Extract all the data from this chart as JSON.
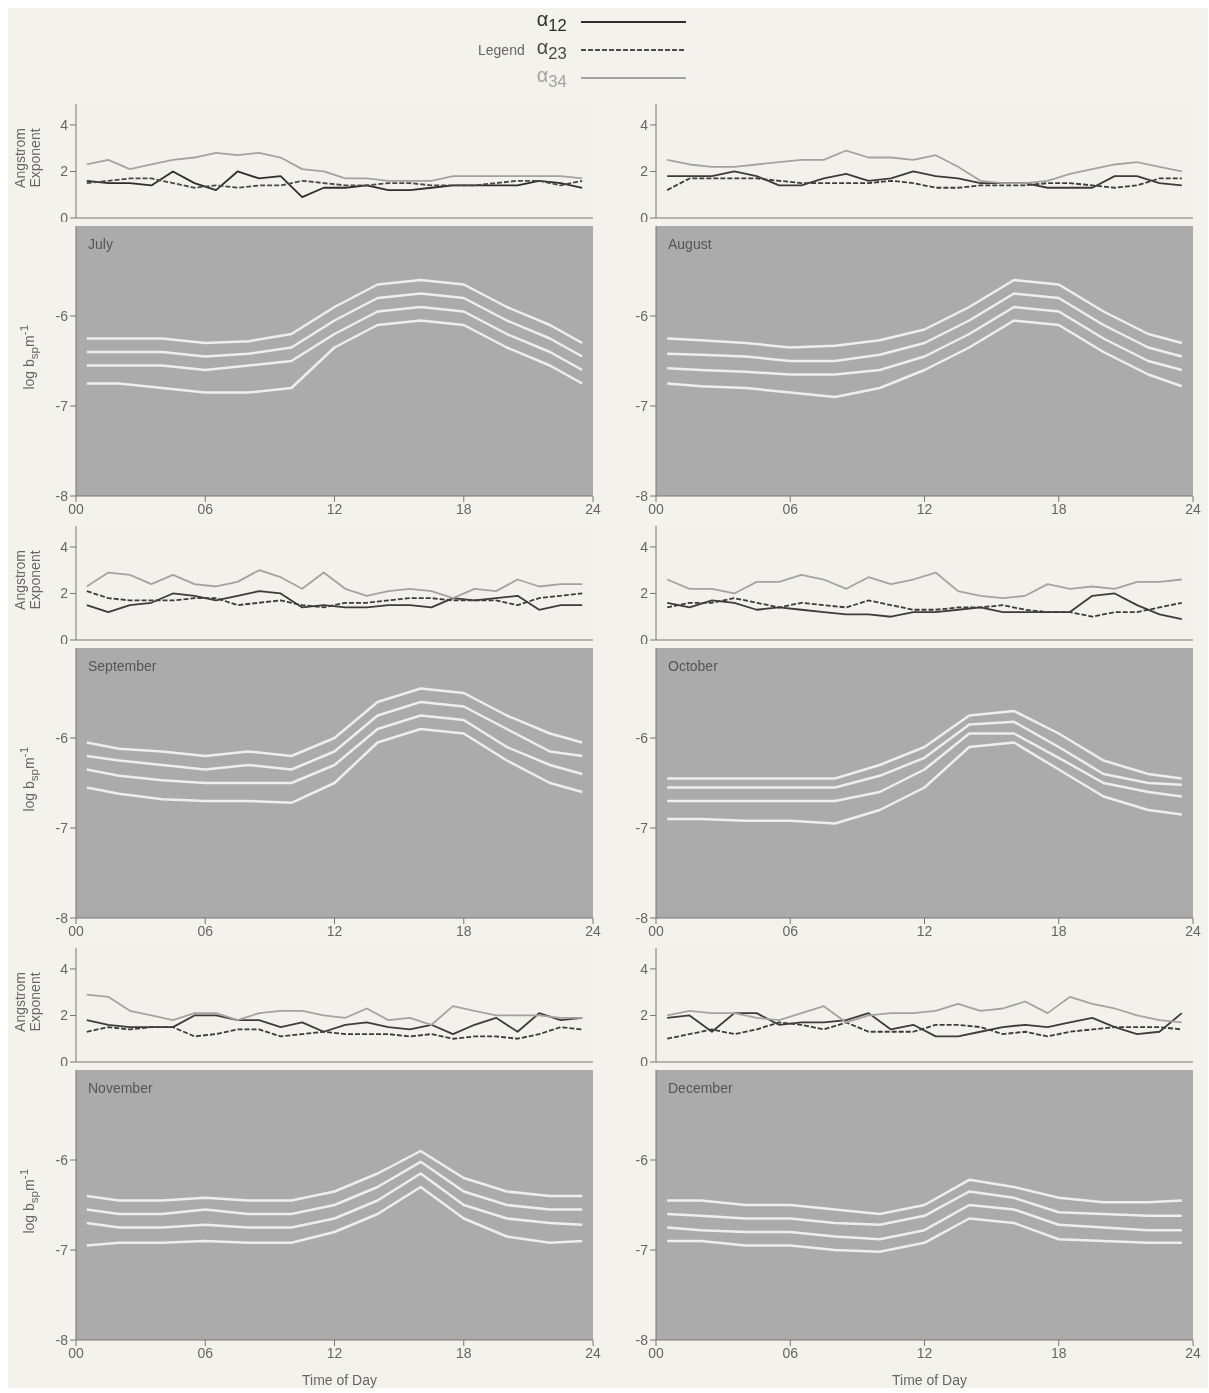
{
  "chart_data": [
    {
      "type": "line",
      "ylabel": "Angstrom Exponent",
      "legend": "top",
      "legend_title": "Legend",
      "tick_labels": "y",
      "xlim": [
        0,
        24
      ],
      "ylim": [
        0,
        4.9
      ],
      "xticks": [
        {
          "value": 0,
          "label": null
        },
        {
          "value": 6,
          "label": null
        },
        {
          "value": 12,
          "label": null
        },
        {
          "value": 18,
          "label": null
        },
        {
          "value": 24,
          "label": null
        }
      ],
      "yticks": [
        0,
        2,
        4
      ],
      "x": [
        0.5,
        1.5,
        2.5,
        3.5,
        4.5,
        5.5,
        6.5,
        7.5,
        8.5,
        9.5,
        10.5,
        11.5,
        12.5,
        13.5,
        14.5,
        15.5,
        16.5,
        17.5,
        18.5,
        19.5,
        20.5,
        21.5,
        22.5,
        23.5
      ],
      "series": [
        {
          "name": "α$_{12}$",
          "color": "#2e2e2e",
          "line_style": "solid",
          "values": [
            1.6,
            1.5,
            1.5,
            1.4,
            2.0,
            1.5,
            1.2,
            2.0,
            1.7,
            1.8,
            0.9,
            1.3,
            1.3,
            1.4,
            1.2,
            1.2,
            1.3,
            1.4,
            1.4,
            1.4,
            1.4,
            1.6,
            1.5,
            1.3
          ]
        },
        {
          "name": "α$_{23}$",
          "color": "#4a4a4a",
          "line_style": "dashed",
          "values": [
            1.5,
            1.6,
            1.7,
            1.7,
            1.5,
            1.3,
            1.4,
            1.3,
            1.4,
            1.4,
            1.6,
            1.5,
            1.4,
            1.4,
            1.5,
            1.5,
            1.4,
            1.4,
            1.4,
            1.5,
            1.6,
            1.6,
            1.4,
            1.6
          ]
        },
        {
          "name": "α$_{34}$",
          "color": "#a3a3a3",
          "line_style": "solid",
          "values": [
            2.3,
            2.5,
            2.1,
            2.3,
            2.5,
            2.6,
            2.8,
            2.7,
            2.8,
            2.6,
            2.1,
            2.0,
            1.7,
            1.7,
            1.6,
            1.6,
            1.6,
            1.8,
            1.8,
            1.8,
            1.8,
            1.8,
            1.8,
            1.7
          ]
        }
      ]
    },
    {
      "type": "line",
      "tick_labels": "y",
      "xlim": [
        0,
        24
      ],
      "ylim": [
        0,
        4.9
      ],
      "xticks": [
        {
          "value": 0,
          "label": null
        },
        {
          "value": 6,
          "label": null
        },
        {
          "value": 12,
          "label": null
        },
        {
          "value": 18,
          "label": null
        },
        {
          "value": 24,
          "label": null
        }
      ],
      "yticks": [
        0,
        2,
        4
      ],
      "x": [
        0.5,
        1.5,
        2.5,
        3.5,
        4.5,
        5.5,
        6.5,
        7.5,
        8.5,
        9.5,
        10.5,
        11.5,
        12.5,
        13.5,
        14.5,
        15.5,
        16.5,
        17.5,
        18.5,
        19.5,
        20.5,
        21.5,
        22.5,
        23.5
      ],
      "series": [
        {
          "color": "#3c3c3c",
          "line_style": "solid",
          "values": [
            1.8,
            1.8,
            1.8,
            2.0,
            1.8,
            1.4,
            1.4,
            1.7,
            1.9,
            1.6,
            1.7,
            2.0,
            1.8,
            1.7,
            1.5,
            1.5,
            1.5,
            1.3,
            1.3,
            1.3,
            1.8,
            1.8,
            1.5,
            1.4
          ]
        },
        {
          "color": "#3c3c3c",
          "line_style": "dashed",
          "values": [
            1.2,
            1.7,
            1.7,
            1.7,
            1.7,
            1.6,
            1.5,
            1.5,
            1.5,
            1.5,
            1.6,
            1.5,
            1.3,
            1.3,
            1.4,
            1.4,
            1.4,
            1.5,
            1.5,
            1.4,
            1.3,
            1.4,
            1.7,
            1.7
          ]
        },
        {
          "color": "#a3a3a3",
          "line_style": "solid",
          "values": [
            2.5,
            2.3,
            2.2,
            2.2,
            2.3,
            2.4,
            2.5,
            2.5,
            2.9,
            2.6,
            2.6,
            2.5,
            2.7,
            2.2,
            1.6,
            1.5,
            1.5,
            1.6,
            1.9,
            2.1,
            2.3,
            2.4,
            2.2,
            2.0
          ]
        }
      ]
    },
    {
      "type": "line",
      "ylabel": "log b$_{sp}$m$^{-1}$",
      "annotations": [
        "July"
      ],
      "xlim": [
        0,
        24
      ],
      "ylim": [
        -8,
        -5
      ],
      "xticks": [
        {
          "value": 0,
          "label": "00"
        },
        {
          "value": 6,
          "label": "06"
        },
        12,
        18,
        24
      ],
      "yticks": [
        -8,
        -7,
        -6
      ],
      "x": [
        0.5,
        2,
        4,
        6,
        8,
        10,
        12,
        14,
        16,
        18,
        20,
        22,
        23.5
      ],
      "series": [
        {
          "color": "#eeeeee",
          "values": [
            -6.25,
            -6.25,
            -6.25,
            -6.3,
            -6.28,
            -6.2,
            -5.9,
            -5.65,
            -5.6,
            -5.65,
            -5.9,
            -6.1,
            -6.3
          ]
        },
        {
          "color": "#eeeeee",
          "values": [
            -6.4,
            -6.4,
            -6.4,
            -6.45,
            -6.42,
            -6.35,
            -6.05,
            -5.8,
            -5.75,
            -5.8,
            -6.05,
            -6.25,
            -6.45
          ]
        },
        {
          "color": "#eeeeee",
          "values": [
            -6.55,
            -6.55,
            -6.55,
            -6.6,
            -6.55,
            -6.5,
            -6.2,
            -5.95,
            -5.9,
            -5.95,
            -6.2,
            -6.4,
            -6.6
          ]
        },
        {
          "color": "#eeeeee",
          "values": [
            -6.75,
            -6.75,
            -6.8,
            -6.85,
            -6.85,
            -6.8,
            -6.35,
            -6.1,
            -6.05,
            -6.1,
            -6.35,
            -6.55,
            -6.75
          ]
        }
      ]
    },
    {
      "type": "line",
      "annotations": [
        "August"
      ],
      "xlim": [
        0,
        24
      ],
      "ylim": [
        -8,
        -5
      ],
      "xticks": [
        {
          "value": 0,
          "label": "00"
        },
        {
          "value": 6,
          "label": "06"
        },
        12,
        18,
        24
      ],
      "yticks": [
        -8,
        -7,
        -6
      ],
      "x": [
        0.5,
        2,
        4,
        6,
        8,
        10,
        12,
        14,
        16,
        18,
        20,
        22,
        23.5
      ],
      "series": [
        {
          "color": "#eeeeee",
          "values": [
            -6.25,
            -6.27,
            -6.3,
            -6.35,
            -6.33,
            -6.27,
            -6.15,
            -5.9,
            -5.6,
            -5.65,
            -5.95,
            -6.2,
            -6.3
          ]
        },
        {
          "color": "#eeeeee",
          "values": [
            -6.42,
            -6.43,
            -6.45,
            -6.5,
            -6.5,
            -6.43,
            -6.3,
            -6.05,
            -5.75,
            -5.8,
            -6.1,
            -6.35,
            -6.45
          ]
        },
        {
          "color": "#eeeeee",
          "values": [
            -6.58,
            -6.6,
            -6.62,
            -6.65,
            -6.65,
            -6.6,
            -6.45,
            -6.2,
            -5.9,
            -5.95,
            -6.25,
            -6.5,
            -6.6
          ]
        },
        {
          "color": "#eeeeee",
          "values": [
            -6.75,
            -6.78,
            -6.8,
            -6.85,
            -6.9,
            -6.8,
            -6.6,
            -6.35,
            -6.05,
            -6.1,
            -6.4,
            -6.65,
            -6.78
          ]
        }
      ]
    },
    {
      "type": "line",
      "ylabel": "Angstrom Exponent",
      "tick_labels": "y",
      "xlim": [
        0,
        24
      ],
      "ylim": [
        0,
        4.9
      ],
      "xticks": [
        {
          "value": 0,
          "label": null
        },
        {
          "value": 6,
          "label": null
        },
        {
          "value": 12,
          "label": null
        },
        {
          "value": 18,
          "label": null
        },
        {
          "value": 24,
          "label": null
        }
      ],
      "yticks": [
        0,
        2,
        4
      ],
      "x": [
        0.5,
        1.5,
        2.5,
        3.5,
        4.5,
        5.5,
        6.5,
        7.5,
        8.5,
        9.5,
        10.5,
        11.5,
        12.5,
        13.5,
        14.5,
        15.5,
        16.5,
        17.5,
        18.5,
        19.5,
        20.5,
        21.5,
        22.5,
        23.5
      ],
      "series": [
        {
          "color": "#3c3c3c",
          "line_style": "solid",
          "values": [
            1.5,
            1.2,
            1.5,
            1.6,
            2.0,
            1.9,
            1.7,
            1.9,
            2.1,
            2.0,
            1.4,
            1.5,
            1.4,
            1.4,
            1.5,
            1.5,
            1.4,
            1.8,
            1.7,
            1.8,
            1.9,
            1.3,
            1.5,
            1.5
          ]
        },
        {
          "color": "#3c3c3c",
          "line_style": "dashed",
          "values": [
            2.1,
            1.8,
            1.7,
            1.7,
            1.7,
            1.8,
            1.8,
            1.5,
            1.6,
            1.7,
            1.5,
            1.4,
            1.6,
            1.6,
            1.7,
            1.8,
            1.8,
            1.7,
            1.7,
            1.7,
            1.5,
            1.8,
            1.9,
            2.0
          ]
        },
        {
          "color": "#a3a3a3",
          "line_style": "solid",
          "values": [
            2.3,
            2.9,
            2.8,
            2.4,
            2.8,
            2.4,
            2.3,
            2.5,
            3.0,
            2.7,
            2.2,
            2.9,
            2.2,
            1.9,
            2.1,
            2.2,
            2.1,
            1.8,
            2.2,
            2.1,
            2.6,
            2.3,
            2.4,
            2.4
          ]
        }
      ]
    },
    {
      "type": "line",
      "tick_labels": "y",
      "xlim": [
        0,
        24
      ],
      "ylim": [
        0,
        4.9
      ],
      "xticks": [
        {
          "value": 0,
          "label": null
        },
        {
          "value": 6,
          "label": null
        },
        {
          "value": 12,
          "label": null
        },
        {
          "value": 18,
          "label": null
        },
        {
          "value": 24,
          "label": null
        }
      ],
      "yticks": [
        0,
        2,
        4
      ],
      "x": [
        0.5,
        1.5,
        2.5,
        3.5,
        4.5,
        5.5,
        6.5,
        7.5,
        8.5,
        9.5,
        10.5,
        11.5,
        12.5,
        13.5,
        14.5,
        15.5,
        16.5,
        17.5,
        18.5,
        19.5,
        20.5,
        21.5,
        22.5,
        23.5
      ],
      "series": [
        {
          "color": "#3c3c3c",
          "line_style": "solid",
          "values": [
            1.6,
            1.4,
            1.7,
            1.6,
            1.3,
            1.4,
            1.3,
            1.2,
            1.1,
            1.1,
            1.0,
            1.2,
            1.2,
            1.3,
            1.4,
            1.2,
            1.2,
            1.2,
            1.2,
            1.9,
            2.0,
            1.5,
            1.1,
            0.9
          ]
        },
        {
          "color": "#3c3c3c",
          "line_style": "dashed",
          "values": [
            1.4,
            1.6,
            1.6,
            1.8,
            1.6,
            1.4,
            1.6,
            1.5,
            1.4,
            1.7,
            1.5,
            1.3,
            1.3,
            1.4,
            1.4,
            1.5,
            1.3,
            1.2,
            1.2,
            1.0,
            1.2,
            1.2,
            1.4,
            1.6
          ]
        },
        {
          "color": "#a3a3a3",
          "line_style": "solid",
          "values": [
            2.6,
            2.2,
            2.2,
            2.0,
            2.5,
            2.5,
            2.8,
            2.6,
            2.2,
            2.7,
            2.4,
            2.6,
            2.9,
            2.1,
            1.9,
            1.8,
            1.9,
            2.4,
            2.2,
            2.3,
            2.2,
            2.5,
            2.5,
            2.6
          ]
        }
      ]
    },
    {
      "type": "line",
      "ylabel": "log b$_{sp}$m$^{-1}$",
      "annotations": [
        "September"
      ],
      "xlim": [
        0,
        24
      ],
      "ylim": [
        -8,
        -5
      ],
      "xticks": [
        {
          "value": 0,
          "label": "00"
        },
        {
          "value": 6,
          "label": "06"
        },
        12,
        18,
        24
      ],
      "yticks": [
        -8,
        -7,
        -6
      ],
      "x": [
        0.5,
        2,
        4,
        6,
        8,
        10,
        12,
        14,
        16,
        18,
        20,
        22,
        23.5
      ],
      "series": [
        {
          "color": "#eeeeee",
          "values": [
            -6.05,
            -6.12,
            -6.15,
            -6.2,
            -6.15,
            -6.2,
            -6.0,
            -5.6,
            -5.45,
            -5.5,
            -5.75,
            -5.95,
            -6.05
          ]
        },
        {
          "color": "#eeeeee",
          "values": [
            -6.2,
            -6.25,
            -6.3,
            -6.35,
            -6.3,
            -6.35,
            -6.15,
            -5.75,
            -5.6,
            -5.65,
            -5.9,
            -6.15,
            -6.2
          ]
        },
        {
          "color": "#eeeeee",
          "values": [
            -6.35,
            -6.42,
            -6.47,
            -6.5,
            -6.5,
            -6.5,
            -6.3,
            -5.9,
            -5.75,
            -5.8,
            -6.1,
            -6.3,
            -6.4
          ]
        },
        {
          "color": "#eeeeee",
          "values": [
            -6.55,
            -6.62,
            -6.68,
            -6.7,
            -6.7,
            -6.72,
            -6.5,
            -6.05,
            -5.9,
            -5.95,
            -6.25,
            -6.5,
            -6.6
          ]
        }
      ]
    },
    {
      "type": "line",
      "annotations": [
        "October"
      ],
      "xlim": [
        0,
        24
      ],
      "ylim": [
        -8,
        -5
      ],
      "xticks": [
        {
          "value": 0,
          "label": "00"
        },
        {
          "value": 6,
          "label": "06"
        },
        12,
        18,
        24
      ],
      "yticks": [
        -8,
        -7,
        -6
      ],
      "x": [
        0.5,
        2,
        4,
        6,
        8,
        10,
        12,
        14,
        16,
        18,
        20,
        22,
        23.5
      ],
      "series": [
        {
          "color": "#eeeeee",
          "values": [
            -6.45,
            -6.45,
            -6.45,
            -6.45,
            -6.45,
            -6.3,
            -6.1,
            -5.75,
            -5.7,
            -5.95,
            -6.25,
            -6.4,
            -6.45
          ]
        },
        {
          "color": "#eeeeee",
          "values": [
            -6.55,
            -6.55,
            -6.55,
            -6.55,
            -6.55,
            -6.42,
            -6.22,
            -5.85,
            -5.82,
            -6.1,
            -6.4,
            -6.5,
            -6.52
          ]
        },
        {
          "color": "#eeeeee",
          "values": [
            -6.7,
            -6.7,
            -6.7,
            -6.7,
            -6.7,
            -6.6,
            -6.35,
            -5.95,
            -5.95,
            -6.22,
            -6.5,
            -6.6,
            -6.65
          ]
        },
        {
          "color": "#eeeeee",
          "values": [
            -6.9,
            -6.9,
            -6.92,
            -6.92,
            -6.95,
            -6.8,
            -6.55,
            -6.1,
            -6.05,
            -6.35,
            -6.65,
            -6.8,
            -6.85
          ]
        }
      ]
    },
    {
      "type": "line",
      "ylabel": "Angstrom Exponent",
      "tick_labels": "y",
      "xlim": [
        0,
        24
      ],
      "ylim": [
        0,
        4.9
      ],
      "xticks": [
        {
          "value": 0,
          "label": null
        },
        {
          "value": 6,
          "label": null
        },
        {
          "value": 12,
          "label": null
        },
        {
          "value": 18,
          "label": null
        },
        {
          "value": 24,
          "label": null
        }
      ],
      "yticks": [
        0,
        2,
        4
      ],
      "x": [
        0.5,
        1.5,
        2.5,
        3.5,
        4.5,
        5.5,
        6.5,
        7.5,
        8.5,
        9.5,
        10.5,
        11.5,
        12.5,
        13.5,
        14.5,
        15.5,
        16.5,
        17.5,
        18.5,
        19.5,
        20.5,
        21.5,
        22.5,
        23.5
      ],
      "series": [
        {
          "color": "#3c3c3c",
          "line_style": "solid",
          "values": [
            1.8,
            1.6,
            1.5,
            1.5,
            1.5,
            2.0,
            2.0,
            1.8,
            1.8,
            1.5,
            1.7,
            1.3,
            1.6,
            1.7,
            1.5,
            1.4,
            1.6,
            1.2,
            1.6,
            1.9,
            1.3,
            2.1,
            1.8,
            1.9
          ]
        },
        {
          "color": "#3c3c3c",
          "line_style": "dashed",
          "values": [
            1.3,
            1.5,
            1.4,
            1.5,
            1.5,
            1.1,
            1.2,
            1.4,
            1.4,
            1.1,
            1.2,
            1.3,
            1.2,
            1.2,
            1.2,
            1.1,
            1.2,
            1.0,
            1.1,
            1.1,
            1.0,
            1.2,
            1.5,
            1.4
          ]
        },
        {
          "color": "#a3a3a3",
          "line_style": "solid",
          "values": [
            2.9,
            2.8,
            2.2,
            2.0,
            1.8,
            2.1,
            2.1,
            1.8,
            2.1,
            2.2,
            2.2,
            2.0,
            1.9,
            2.3,
            1.8,
            1.9,
            1.6,
            2.4,
            2.2,
            2.0,
            2.0,
            2.0,
            1.9,
            1.9
          ]
        }
      ]
    },
    {
      "type": "line",
      "tick_labels": "y",
      "xlim": [
        0,
        24
      ],
      "ylim": [
        0,
        4.9
      ],
      "xticks": [
        {
          "value": 0,
          "label": null
        },
        {
          "value": 6,
          "label": null
        },
        {
          "value": 12,
          "label": null
        },
        {
          "value": 18,
          "label": null
        },
        {
          "value": 24,
          "label": null
        }
      ],
      "yticks": [
        0,
        2,
        4
      ],
      "x": [
        0.5,
        1.5,
        2.5,
        3.5,
        4.5,
        5.5,
        6.5,
        7.5,
        8.5,
        9.5,
        10.5,
        11.5,
        12.5,
        13.5,
        14.5,
        15.5,
        16.5,
        17.5,
        18.5,
        19.5,
        20.5,
        21.5,
        22.5,
        23.5
      ],
      "series": [
        {
          "color": "#3c3c3c",
          "line_style": "solid",
          "values": [
            1.9,
            2.0,
            1.3,
            2.1,
            2.1,
            1.6,
            1.7,
            1.7,
            1.8,
            2.1,
            1.4,
            1.6,
            1.1,
            1.1,
            1.3,
            1.5,
            1.6,
            1.5,
            1.7,
            1.9,
            1.5,
            1.2,
            1.3,
            2.1
          ]
        },
        {
          "color": "#3c3c3c",
          "line_style": "dashed",
          "values": [
            1.0,
            1.2,
            1.4,
            1.2,
            1.4,
            1.7,
            1.6,
            1.4,
            1.7,
            1.3,
            1.3,
            1.3,
            1.6,
            1.6,
            1.5,
            1.2,
            1.3,
            1.1,
            1.3,
            1.4,
            1.5,
            1.5,
            1.5,
            1.4
          ]
        },
        {
          "color": "#a3a3a3",
          "line_style": "solid",
          "values": [
            2.0,
            2.2,
            2.1,
            2.1,
            1.9,
            1.8,
            2.1,
            2.4,
            1.7,
            2.0,
            2.1,
            2.1,
            2.2,
            2.5,
            2.2,
            2.3,
            2.6,
            2.1,
            2.8,
            2.5,
            2.3,
            2.0,
            1.8,
            1.7
          ]
        }
      ]
    },
    {
      "type": "line",
      "ylabel": "log b$_{sp}$m$^{-1}$",
      "xlabel": "Time of Day",
      "annotations": [
        "November"
      ],
      "xlim": [
        0,
        24
      ],
      "ylim": [
        -8,
        -5
      ],
      "xticks": [
        {
          "value": 0,
          "label": "00"
        },
        {
          "value": 6,
          "label": "06"
        },
        12,
        18,
        24
      ],
      "yticks": [
        -8,
        -7,
        -6
      ],
      "x": [
        0.5,
        2,
        4,
        6,
        8,
        10,
        12,
        14,
        16,
        18,
        20,
        22,
        23.5
      ],
      "series": [
        {
          "color": "#eeeeee",
          "values": [
            -6.4,
            -6.45,
            -6.45,
            -6.42,
            -6.45,
            -6.45,
            -6.35,
            -6.15,
            -5.9,
            -6.2,
            -6.35,
            -6.4,
            -6.4
          ]
        },
        {
          "color": "#eeeeee",
          "values": [
            -6.55,
            -6.6,
            -6.6,
            -6.55,
            -6.6,
            -6.6,
            -6.5,
            -6.3,
            -6.02,
            -6.35,
            -6.5,
            -6.55,
            -6.55
          ]
        },
        {
          "color": "#eeeeee",
          "values": [
            -6.7,
            -6.75,
            -6.75,
            -6.72,
            -6.75,
            -6.75,
            -6.65,
            -6.45,
            -6.15,
            -6.5,
            -6.65,
            -6.7,
            -6.72
          ]
        },
        {
          "color": "#eeeeee",
          "values": [
            -6.95,
            -6.92,
            -6.92,
            -6.9,
            -6.92,
            -6.92,
            -6.8,
            -6.6,
            -6.3,
            -6.65,
            -6.85,
            -6.92,
            -6.9
          ]
        }
      ]
    },
    {
      "type": "line",
      "xlabel": "Time of Day",
      "annotations": [
        "December"
      ],
      "xlim": [
        0,
        24
      ],
      "ylim": [
        -8,
        -5
      ],
      "xticks": [
        {
          "value": 0,
          "label": "00"
        },
        {
          "value": 6,
          "label": "06"
        },
        12,
        18,
        24
      ],
      "yticks": [
        -8,
        -7,
        -6
      ],
      "x": [
        0.5,
        2,
        4,
        6,
        8,
        10,
        12,
        14,
        16,
        18,
        20,
        22,
        23.5
      ],
      "series": [
        {
          "color": "#eeeeee",
          "values": [
            -6.45,
            -6.45,
            -6.5,
            -6.5,
            -6.55,
            -6.6,
            -6.5,
            -6.22,
            -6.3,
            -6.42,
            -6.47,
            -6.47,
            -6.45
          ]
        },
        {
          "color": "#eeeeee",
          "values": [
            -6.6,
            -6.62,
            -6.65,
            -6.65,
            -6.7,
            -6.72,
            -6.62,
            -6.35,
            -6.42,
            -6.58,
            -6.6,
            -6.62,
            -6.62
          ]
        },
        {
          "color": "#eeeeee",
          "values": [
            -6.75,
            -6.78,
            -6.8,
            -6.8,
            -6.85,
            -6.88,
            -6.78,
            -6.5,
            -6.55,
            -6.72,
            -6.75,
            -6.78,
            -6.78
          ]
        },
        {
          "color": "#eeeeee",
          "values": [
            -6.9,
            -6.9,
            -6.95,
            -6.95,
            -7.0,
            -7.02,
            -6.92,
            -6.65,
            -6.7,
            -6.88,
            -6.9,
            -6.92,
            -6.92
          ]
        }
      ]
    }
  ]
}
